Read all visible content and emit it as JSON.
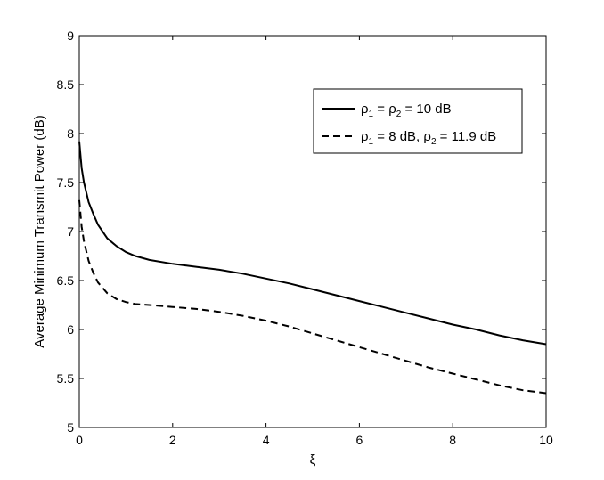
{
  "chart_data": {
    "type": "line",
    "title": "",
    "xlabel": "ξ",
    "ylabel": "Average Minimum Transmit Power (dB)",
    "xlim": [
      0,
      10
    ],
    "ylim": [
      5,
      9
    ],
    "xticks": [
      0,
      2,
      4,
      6,
      8,
      10
    ],
    "xtick_labels": [
      "0",
      "2",
      "4",
      "6",
      "8",
      "10"
    ],
    "yticks": [
      5,
      5.5,
      6,
      6.5,
      7,
      7.5,
      8,
      8.5,
      9
    ],
    "ytick_labels": [
      "5",
      "5.5",
      "6",
      "6.5",
      "7",
      "7.5",
      "8",
      "8.5",
      "9"
    ],
    "grid": false,
    "legend_position": "top-right",
    "series": [
      {
        "legend": {
          "sym": "ρ",
          "sub1": "1",
          "mid": " = ",
          "sub2": "2",
          "tail": " = 10 dB"
        },
        "style": "solid",
        "color": "#000000",
        "x": [
          0,
          0.05,
          0.1,
          0.2,
          0.3,
          0.4,
          0.6,
          0.8,
          1.0,
          1.2,
          1.5,
          2.0,
          2.5,
          3.0,
          3.5,
          4.0,
          4.5,
          5.0,
          5.5,
          6.0,
          6.5,
          7.0,
          7.5,
          8.0,
          8.5,
          9.0,
          9.5,
          10.0
        ],
        "y": [
          7.92,
          7.65,
          7.5,
          7.3,
          7.18,
          7.07,
          6.93,
          6.85,
          6.79,
          6.75,
          6.71,
          6.67,
          6.64,
          6.61,
          6.57,
          6.52,
          6.47,
          6.41,
          6.35,
          6.29,
          6.23,
          6.17,
          6.11,
          6.05,
          6.0,
          5.94,
          5.89,
          5.85
        ]
      },
      {
        "legend": {
          "sym": "ρ",
          "sub1": "1",
          "mid": " = 8 dB, ",
          "sym2": "ρ",
          "sub2": "2",
          "tail": " = 11.9 dB"
        },
        "style": "dashed",
        "color": "#000000",
        "x": [
          0,
          0.05,
          0.1,
          0.2,
          0.3,
          0.4,
          0.6,
          0.8,
          1.0,
          1.2,
          1.5,
          2.0,
          2.5,
          3.0,
          3.5,
          4.0,
          4.5,
          5.0,
          5.5,
          6.0,
          6.5,
          7.0,
          7.5,
          8.0,
          8.5,
          9.0,
          9.5,
          10.0
        ],
        "y": [
          7.32,
          7.05,
          6.9,
          6.7,
          6.58,
          6.48,
          6.37,
          6.31,
          6.28,
          6.26,
          6.25,
          6.23,
          6.21,
          6.18,
          6.14,
          6.09,
          6.03,
          5.96,
          5.89,
          5.82,
          5.75,
          5.68,
          5.61,
          5.55,
          5.49,
          5.43,
          5.38,
          5.35
        ]
      }
    ]
  }
}
